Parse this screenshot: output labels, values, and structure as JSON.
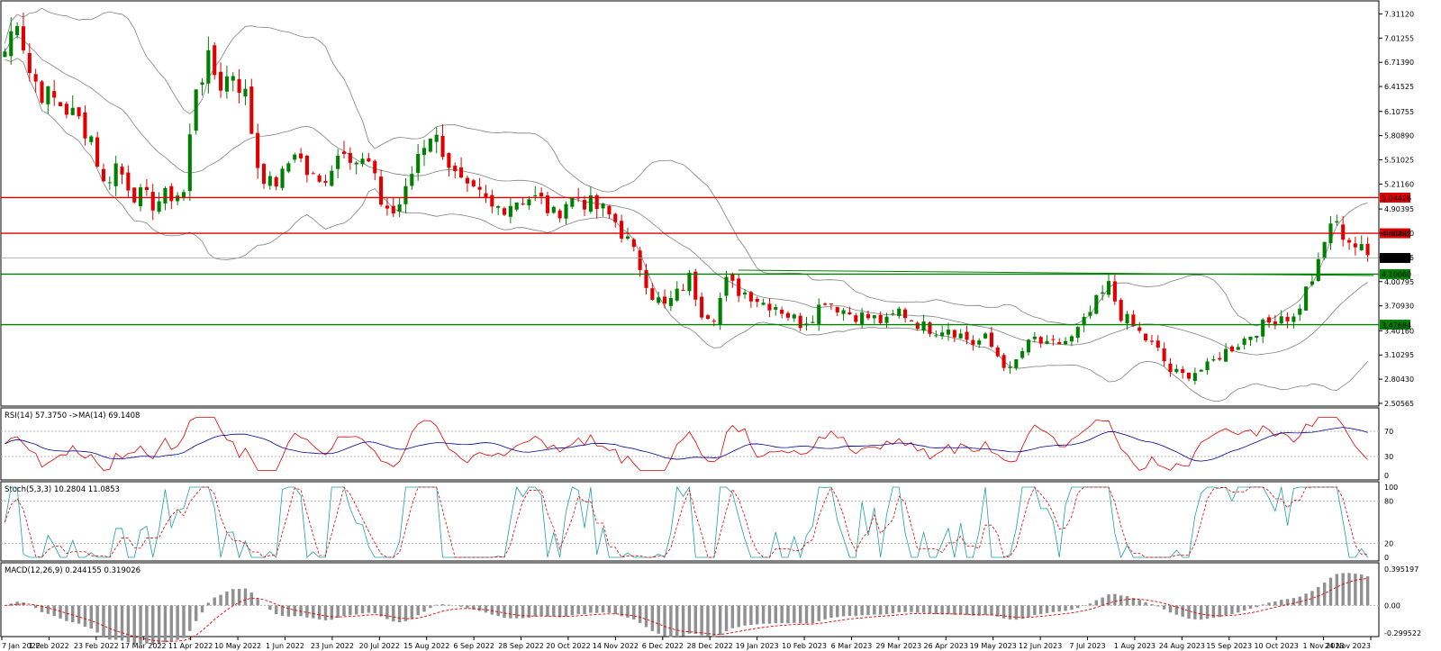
{
  "chart_data": {
    "type": "candlestick",
    "price_axis": {
      "range": [
        2.50565,
        7.45
      ],
      "ticks": [
        "7.31120",
        "7.01255",
        "6.71390",
        "6.41525",
        "6.10755",
        "5.80890",
        "5.51025",
        "5.21160",
        "4.90395",
        "4.60530",
        "4.30665",
        "4.00795",
        "3.70930",
        "3.40160",
        "3.10295",
        "2.80430",
        "2.50565"
      ]
    },
    "levels": [
      {
        "name": "resistance-high",
        "value": 5.04426,
        "label": "5.04426",
        "color": "#e00000"
      },
      {
        "name": "resistance-low",
        "value": 4.60442,
        "label": "4.60442",
        "color": "#e00000"
      },
      {
        "name": "current-price",
        "value": 4.3,
        "label": "4.30000",
        "color": "#a0a0a0"
      },
      {
        "name": "support-high",
        "value": 4.1006,
        "label": "4.10060",
        "color": "#008000"
      },
      {
        "name": "support-low",
        "value": 3.47684,
        "label": "3.47684",
        "color": "#008000"
      }
    ],
    "price_path": [
      {
        "d": 0,
        "v": 6.85
      },
      {
        "d": 2,
        "v": 7.3
      },
      {
        "d": 4,
        "v": 6.6
      },
      {
        "d": 6,
        "v": 6.35
      },
      {
        "d": 9,
        "v": 6.2
      },
      {
        "d": 12,
        "v": 6.0
      },
      {
        "d": 14,
        "v": 5.8
      },
      {
        "d": 16,
        "v": 5.2
      },
      {
        "d": 18,
        "v": 5.45
      },
      {
        "d": 21,
        "v": 5.1
      },
      {
        "d": 24,
        "v": 4.98
      },
      {
        "d": 27,
        "v": 5.08
      },
      {
        "d": 29,
        "v": 5.1
      },
      {
        "d": 31,
        "v": 6.45
      },
      {
        "d": 33,
        "v": 6.7
      },
      {
        "d": 35,
        "v": 6.45
      },
      {
        "d": 37,
        "v": 6.6
      },
      {
        "d": 39,
        "v": 6.3
      },
      {
        "d": 41,
        "v": 5.45
      },
      {
        "d": 43,
        "v": 5.2
      },
      {
        "d": 45,
        "v": 5.3
      },
      {
        "d": 47,
        "v": 5.65
      },
      {
        "d": 49,
        "v": 5.35
      },
      {
        "d": 51,
        "v": 5.2
      },
      {
        "d": 53,
        "v": 5.45
      },
      {
        "d": 55,
        "v": 5.7
      },
      {
        "d": 57,
        "v": 5.5
      },
      {
        "d": 59,
        "v": 5.45
      },
      {
        "d": 61,
        "v": 5.0
      },
      {
        "d": 63,
        "v": 4.85
      },
      {
        "d": 65,
        "v": 5.1
      },
      {
        "d": 67,
        "v": 5.6
      },
      {
        "d": 69,
        "v": 5.85
      },
      {
        "d": 71,
        "v": 5.65
      },
      {
        "d": 73,
        "v": 5.3
      },
      {
        "d": 75,
        "v": 5.1
      },
      {
        "d": 77,
        "v": 5.05
      },
      {
        "d": 79,
        "v": 4.9
      },
      {
        "d": 81,
        "v": 4.95
      },
      {
        "d": 83,
        "v": 5.02
      },
      {
        "d": 85,
        "v": 5.05
      },
      {
        "d": 87,
        "v": 5.0
      },
      {
        "d": 89,
        "v": 4.82
      },
      {
        "d": 91,
        "v": 5.0
      },
      {
        "d": 93,
        "v": 5.05
      },
      {
        "d": 95,
        "v": 4.95
      },
      {
        "d": 97,
        "v": 4.88
      },
      {
        "d": 99,
        "v": 4.75
      },
      {
        "d": 101,
        "v": 4.5
      },
      {
        "d": 103,
        "v": 4.2
      },
      {
        "d": 105,
        "v": 3.85
      },
      {
        "d": 107,
        "v": 3.7
      },
      {
        "d": 109,
        "v": 3.85
      },
      {
        "d": 111,
        "v": 4.05
      },
      {
        "d": 113,
        "v": 3.65
      },
      {
        "d": 115,
        "v": 3.6
      },
      {
        "d": 117,
        "v": 4.0
      },
      {
        "d": 119,
        "v": 3.9
      },
      {
        "d": 121,
        "v": 3.85
      },
      {
        "d": 123,
        "v": 3.75
      },
      {
        "d": 125,
        "v": 3.72
      },
      {
        "d": 127,
        "v": 3.6
      },
      {
        "d": 129,
        "v": 3.5
      },
      {
        "d": 131,
        "v": 3.6
      },
      {
        "d": 133,
        "v": 3.8
      },
      {
        "d": 135,
        "v": 3.7
      },
      {
        "d": 137,
        "v": 3.62
      },
      {
        "d": 139,
        "v": 3.58
      },
      {
        "d": 141,
        "v": 3.55
      },
      {
        "d": 143,
        "v": 3.5
      },
      {
        "d": 145,
        "v": 3.65
      },
      {
        "d": 147,
        "v": 3.55
      },
      {
        "d": 149,
        "v": 3.45
      },
      {
        "d": 151,
        "v": 3.42
      },
      {
        "d": 153,
        "v": 3.45
      },
      {
        "d": 155,
        "v": 3.35
      },
      {
        "d": 157,
        "v": 3.25
      },
      {
        "d": 159,
        "v": 3.3
      },
      {
        "d": 161,
        "v": 3.1
      },
      {
        "d": 163,
        "v": 2.9
      },
      {
        "d": 165,
        "v": 3.15
      },
      {
        "d": 167,
        "v": 3.3
      },
      {
        "d": 169,
        "v": 3.2
      },
      {
        "d": 171,
        "v": 3.25
      },
      {
        "d": 173,
        "v": 3.3
      },
      {
        "d": 175,
        "v": 3.5
      },
      {
        "d": 177,
        "v": 3.75
      },
      {
        "d": 179,
        "v": 3.95
      },
      {
        "d": 181,
        "v": 3.6
      },
      {
        "d": 183,
        "v": 3.45
      },
      {
        "d": 185,
        "v": 3.3
      },
      {
        "d": 187,
        "v": 3.15
      },
      {
        "d": 189,
        "v": 2.9
      },
      {
        "d": 191,
        "v": 2.85
      },
      {
        "d": 193,
        "v": 2.9
      },
      {
        "d": 195,
        "v": 2.95
      },
      {
        "d": 197,
        "v": 3.1
      },
      {
        "d": 199,
        "v": 3.2
      },
      {
        "d": 201,
        "v": 3.3
      },
      {
        "d": 203,
        "v": 3.42
      },
      {
        "d": 205,
        "v": 3.5
      },
      {
        "d": 207,
        "v": 3.6
      },
      {
        "d": 209,
        "v": 3.55
      },
      {
        "d": 211,
        "v": 3.9
      },
      {
        "d": 213,
        "v": 4.2
      },
      {
        "d": 215,
        "v": 4.75
      },
      {
        "d": 217,
        "v": 4.6
      },
      {
        "d": 219,
        "v": 4.45
      },
      {
        "d": 221,
        "v": 4.32
      }
    ],
    "x_ticks": [
      "7 Jan 2022",
      "1 Feb 2022",
      "23 Feb 2022",
      "17 Mar 2022",
      "11 Apr 2022",
      "10 May 2022",
      "1 Jun 2022",
      "23 Jun 2022",
      "20 Jul 2022",
      "15 Aug 2022",
      "6 Sep 2022",
      "28 Sep 2022",
      "20 Oct 2022",
      "14 Nov 2022",
      "6 Dec 2022",
      "28 Dec 2022",
      "19 Jan 2023",
      "10 Feb 2023",
      "6 Mar 2023",
      "29 Mar 2023",
      "26 Apr 2023",
      "19 May 2023",
      "12 Jun 2023",
      "7 Jul 2023",
      "1 Aug 2023",
      "24 Aug 2023",
      "15 Sep 2023",
      "10 Oct 2023",
      "1 Nov 2023",
      "24 Nov 2023"
    ],
    "bollinger": true,
    "indicators": {
      "rsi": {
        "title": "RSI(14) 57.3750  ->MA(14) 69.1408",
        "range": [
          0,
          100
        ],
        "ticks": [
          "70",
          "30",
          "0"
        ],
        "levels": [
          70,
          30
        ],
        "colors": {
          "rsi": "#e00000",
          "ma": "#000090"
        }
      },
      "stoch": {
        "title": "Stoch(5,3,3) 10.2804 11.0853",
        "range": [
          0,
          100
        ],
        "ticks": [
          "100",
          "80",
          "20",
          "0"
        ],
        "levels": [
          80,
          20
        ],
        "colors": {
          "k": "#20a0a0",
          "d": "#e00000"
        }
      },
      "macd": {
        "title": "MACD(12,26,9) 0.244155 0.319026",
        "ticks": [
          "0.395197",
          "0.00",
          "-0.299522"
        ],
        "range": [
          -0.299522,
          0.395197
        ],
        "colors": {
          "hist": "#909090",
          "signal": "#e00000"
        }
      }
    }
  },
  "colors": {
    "bull": "#008000",
    "bear": "#e00000",
    "band": "#808080",
    "grid": "#b0b0b0"
  }
}
